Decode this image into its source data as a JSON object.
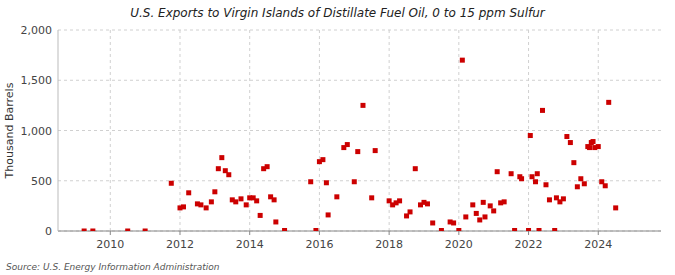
{
  "chart_data": {
    "type": "scatter",
    "title": "U.S. Exports to Virgin Islands of Distillate Fuel Oil, 0 to 15 ppm Sulfur",
    "ylabel": "Thousand Barrels",
    "source": "Source: U.S. Energy Information Administration",
    "color": "#cc0000",
    "marker": "square",
    "grid": true,
    "xlim": [
      2008.5,
      2025.8
    ],
    "xticks": [
      2010,
      2012,
      2014,
      2016,
      2018,
      2020,
      2022,
      2024
    ],
    "ylim": [
      0,
      2000
    ],
    "yticks": [
      0,
      500,
      {
        "value": 1000,
        "label": "1,000"
      },
      {
        "value": 1500,
        "label": "1,500"
      },
      {
        "value": 2000,
        "label": "2,000"
      }
    ],
    "x": [
      2009.25,
      2009.5,
      2010.5,
      2011.0,
      2011.75,
      2012.0,
      2012.1,
      2012.25,
      2012.5,
      2012.6,
      2012.75,
      2012.9,
      2013.0,
      2013.1,
      2013.2,
      2013.3,
      2013.4,
      2013.5,
      2013.6,
      2013.75,
      2013.9,
      2014.0,
      2014.1,
      2014.2,
      2014.3,
      2014.4,
      2014.5,
      2014.6,
      2014.7,
      2014.75,
      2015.0,
      2015.75,
      2015.9,
      2016.0,
      2016.1,
      2016.2,
      2016.25,
      2016.5,
      2016.7,
      2016.8,
      2017.0,
      2017.1,
      2017.25,
      2017.5,
      2017.6,
      2018.0,
      2018.1,
      2018.2,
      2018.3,
      2018.5,
      2018.6,
      2018.75,
      2018.9,
      2019.0,
      2019.1,
      2019.25,
      2019.5,
      2019.75,
      2019.85,
      2020.0,
      2020.1,
      2020.2,
      2020.4,
      2020.5,
      2020.6,
      2020.7,
      2020.75,
      2020.9,
      2021.0,
      2021.1,
      2021.2,
      2021.3,
      2021.5,
      2021.6,
      2021.75,
      2021.8,
      2022.0,
      2022.05,
      2022.1,
      2022.2,
      2022.25,
      2022.3,
      2022.4,
      2022.5,
      2022.6,
      2022.75,
      2022.8,
      2022.9,
      2023.0,
      2023.1,
      2023.2,
      2023.3,
      2023.4,
      2023.5,
      2023.6,
      2023.7,
      2023.75,
      2023.8,
      2023.85,
      2023.9,
      2024.0,
      2024.1,
      2024.2,
      2024.3,
      2024.5
    ],
    "values": [
      0,
      0,
      0,
      0,
      475,
      230,
      240,
      380,
      270,
      260,
      230,
      290,
      390,
      620,
      730,
      600,
      560,
      310,
      290,
      320,
      260,
      330,
      330,
      300,
      155,
      620,
      640,
      340,
      310,
      90,
      5,
      490,
      5,
      690,
      710,
      480,
      160,
      340,
      830,
      860,
      490,
      790,
      1250,
      330,
      800,
      300,
      260,
      280,
      300,
      150,
      190,
      620,
      260,
      285,
      270,
      80,
      5,
      90,
      80,
      5,
      1700,
      140,
      260,
      175,
      110,
      285,
      140,
      250,
      200,
      590,
      280,
      290,
      570,
      5,
      540,
      520,
      5,
      950,
      540,
      490,
      570,
      5,
      1200,
      460,
      310,
      5,
      330,
      290,
      320,
      940,
      880,
      680,
      440,
      520,
      470,
      840,
      830,
      880,
      890,
      830,
      840,
      490,
      450,
      1280,
      230
    ]
  }
}
